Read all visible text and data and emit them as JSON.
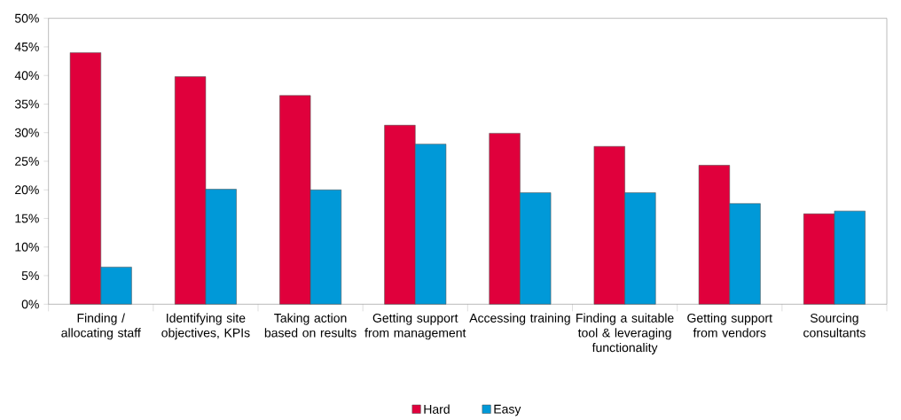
{
  "chart_data": {
    "type": "bar",
    "categories": [
      "Finding / allocating staff",
      "Identifying site objectives, KPIs",
      "Taking action based on results",
      "Getting support from management",
      "Accessing training",
      "Finding a suitable tool & leveraging functionality",
      "Getting support from vendors",
      "Sourcing consultants"
    ],
    "series": [
      {
        "name": "Hard",
        "color": "#e0003c",
        "values": [
          44.0,
          39.8,
          36.5,
          31.3,
          29.9,
          27.6,
          24.3,
          15.8
        ]
      },
      {
        "name": "Easy",
        "color": "#0099d8",
        "values": [
          6.5,
          20.1,
          20.0,
          28.0,
          19.5,
          19.5,
          17.6,
          16.3
        ]
      }
    ],
    "ylim": [
      0,
      50
    ],
    "yticks": [
      {
        "value": 0,
        "label": "0%"
      },
      {
        "value": 5,
        "label": "5%"
      },
      {
        "value": 10,
        "label": "10%"
      },
      {
        "value": 15,
        "label": "15%"
      },
      {
        "value": 20,
        "label": "20%"
      },
      {
        "value": 25,
        "label": "25%"
      },
      {
        "value": 30,
        "label": "30%"
      },
      {
        "value": 35,
        "label": "35%"
      },
      {
        "value": 40,
        "label": "40%"
      },
      {
        "value": 45,
        "label": "45%"
      },
      {
        "value": 50,
        "label": "50%"
      }
    ],
    "legend": "bottom"
  }
}
